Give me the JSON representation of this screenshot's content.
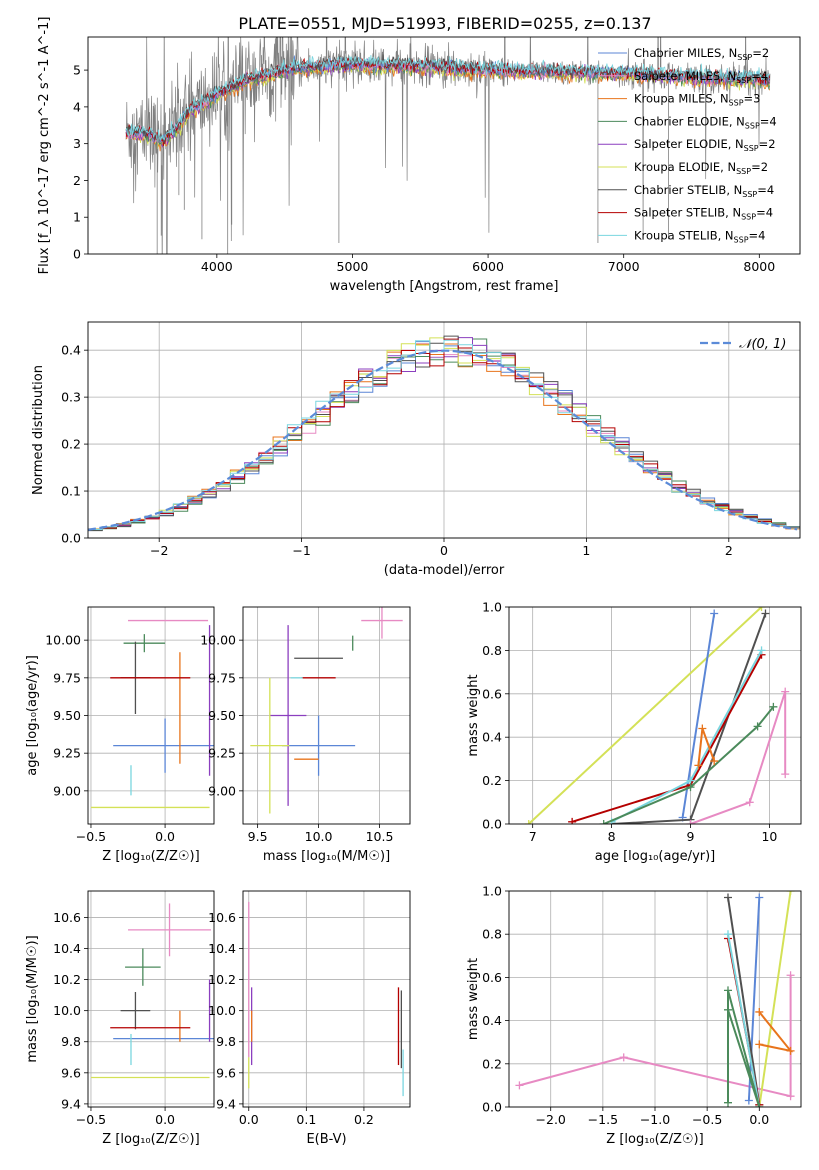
{
  "title": "PLATE=0551, MJD=51993, FIBERID=0255, z=0.137",
  "colors": {
    "chabrier_miles": "#5b86d6",
    "salpeter_miles": "#e78ac3",
    "kroupa_miles": "#e8741c",
    "chabrier_elodie": "#4b8a5b",
    "salpeter_elodie": "#8b3fbf",
    "kroupa_elodie": "#d4e157",
    "chabrier_stelib": "#505050",
    "salpeter_stelib": "#b40000",
    "kroupa_stelib": "#7ad6df",
    "data": "#808080",
    "normal": "#5b8bd8"
  },
  "chart_data": [
    {
      "id": "spectrum",
      "type": "line",
      "xlabel": "wavelength [Angstrom, rest frame]",
      "ylabel": "Flux [f_λ 10^-17 erg cm^-2 s^-1 A^-1]",
      "xlim": [
        3050,
        8300
      ],
      "ylim": [
        0,
        5.9
      ],
      "xticks": [
        4000,
        5000,
        6000,
        7000,
        8000
      ],
      "yticks": [
        0,
        1,
        2,
        3,
        4,
        5
      ],
      "legend": [
        {
          "key": "chabrier_miles",
          "label": "Chabrier MILES, N",
          "sub": "SSP",
          "suffix": "=2"
        },
        {
          "key": "salpeter_miles",
          "label": "Salpeter MILES, N",
          "sub": "SSP",
          "suffix": "=4"
        },
        {
          "key": "kroupa_miles",
          "label": "Kroupa MILES, N",
          "sub": "SSP",
          "suffix": "=3"
        },
        {
          "key": "chabrier_elodie",
          "label": "Chabrier ELODIE, N",
          "sub": "SSP",
          "suffix": "=4"
        },
        {
          "key": "salpeter_elodie",
          "label": "Salpeter ELODIE, N",
          "sub": "SSP",
          "suffix": "=2"
        },
        {
          "key": "kroupa_elodie",
          "label": "Kroupa ELODIE, N",
          "sub": "SSP",
          "suffix": "=2"
        },
        {
          "key": "chabrier_stelib",
          "label": "Chabrier STELIB, N",
          "sub": "SSP",
          "suffix": "=4"
        },
        {
          "key": "salpeter_stelib",
          "label": "Salpeter STELIB, N",
          "sub": "SSP",
          "suffix": "=4"
        },
        {
          "key": "kroupa_stelib",
          "label": "Kroupa STELIB, N",
          "sub": "SSP",
          "suffix": "=4"
        }
      ],
      "continuum": [
        [
          3330,
          3.3
        ],
        [
          3500,
          3.25
        ],
        [
          3600,
          3.05
        ],
        [
          3700,
          3.4
        ],
        [
          3800,
          3.9
        ],
        [
          3900,
          4.1
        ],
        [
          4000,
          4.35
        ],
        [
          4200,
          4.7
        ],
        [
          4400,
          4.9
        ],
        [
          4600,
          5.05
        ],
        [
          5000,
          5.15
        ],
        [
          5500,
          5.1
        ],
        [
          6000,
          5.0
        ],
        [
          6500,
          4.95
        ],
        [
          7000,
          4.9
        ],
        [
          7500,
          4.8
        ],
        [
          8000,
          4.75
        ],
        [
          8080,
          4.7
        ]
      ]
    },
    {
      "id": "residuals",
      "type": "histogram",
      "xlabel": "(data-model)/error",
      "ylabel": "Normed distribution",
      "xlim": [
        -2.5,
        2.5
      ],
      "ylim": [
        0,
        0.46
      ],
      "xticks": [
        -2,
        -1,
        0,
        1,
        2
      ],
      "yticks": [
        0.0,
        0.1,
        0.2,
        0.3,
        0.4
      ],
      "legend_label": "𝒩(0, 1)",
      "bin_width": 0.1,
      "normal": {
        "mu": 0,
        "sigma": 1
      }
    },
    {
      "id": "age_vs_Z",
      "type": "scatter",
      "xlabel": "Z [log₁₀(Z/Z☉)]",
      "ylabel": "age  [log₁₀(age/yr)]",
      "xlim": [
        -0.52,
        0.33
      ],
      "ylim": [
        8.78,
        10.22
      ],
      "xticks": [
        -0.5,
        0.0
      ],
      "yticks": [
        9.0,
        9.25,
        9.5,
        9.75,
        10.0
      ],
      "points": [
        {
          "key": "chabrier_miles",
          "x": 0.0,
          "xerr": 0.35,
          "y": 9.3,
          "yerr": 0.18
        },
        {
          "key": "salpeter_miles",
          "x": 0.02,
          "xerr": 0.27,
          "y": 10.13,
          "yerr": 0.0
        },
        {
          "key": "kroupa_miles",
          "x": 0.1,
          "xerr": 0.0,
          "y": 9.55,
          "yerr": 0.37
        },
        {
          "key": "chabrier_elodie",
          "x": -0.14,
          "xerr": 0.14,
          "y": 9.98,
          "yerr": 0.06
        },
        {
          "key": "salpeter_elodie",
          "x": 0.3,
          "xerr": 0.0,
          "y": 9.6,
          "yerr": 0.5
        },
        {
          "key": "kroupa_elodie",
          "x": -0.1,
          "xerr": 0.4,
          "y": 8.89,
          "yerr": 0.0
        },
        {
          "key": "chabrier_stelib",
          "x": -0.2,
          "xerr": 0.1,
          "y": 9.75,
          "yerr": 0.24
        },
        {
          "key": "salpeter_stelib",
          "x": -0.1,
          "xerr": 0.27,
          "y": 9.75,
          "yerr": 0.0
        },
        {
          "key": "kroupa_stelib",
          "x": -0.23,
          "xerr": 0.0,
          "y": 9.07,
          "yerr": 0.1
        }
      ]
    },
    {
      "id": "age_vs_mass",
      "type": "scatter",
      "xlabel": "mass [log₁₀(M/M☉)]",
      "ylabel": "",
      "xlim": [
        9.38,
        10.75
      ],
      "ylim": [
        8.78,
        10.22
      ],
      "xticks": [
        9.5,
        10.0,
        10.5
      ],
      "yticks": [
        9.0,
        9.25,
        9.5,
        9.75,
        10.0
      ],
      "points": [
        {
          "key": "chabrier_miles",
          "x": 10.0,
          "xerr": 0.3,
          "y": 9.3,
          "yerr": 0.2
        },
        {
          "key": "salpeter_miles",
          "x": 10.52,
          "xerr": 0.17,
          "y": 10.13,
          "yerr": 0.12
        },
        {
          "key": "kroupa_miles",
          "x": 9.9,
          "xerr": 0.1,
          "y": 9.21,
          "yerr": 0.0
        },
        {
          "key": "chabrier_elodie",
          "x": 10.28,
          "xerr": 0.0,
          "y": 9.98,
          "yerr": 0.05
        },
        {
          "key": "salpeter_elodie",
          "x": 9.75,
          "xerr": 0.15,
          "y": 9.5,
          "yerr": 0.6
        },
        {
          "key": "kroupa_elodie",
          "x": 9.6,
          "xerr": 0.16,
          "y": 9.3,
          "yerr": 0.45
        },
        {
          "key": "chabrier_stelib",
          "x": 10.0,
          "xerr": 0.2,
          "y": 9.88,
          "yerr": 0.0
        },
        {
          "key": "salpeter_stelib",
          "x": 10.0,
          "xerr": 0.14,
          "y": 9.75,
          "yerr": 0.0
        },
        {
          "key": "kroupa_stelib",
          "x": 9.82,
          "xerr": 0.05,
          "y": 9.75,
          "yerr": 0.0
        }
      ]
    },
    {
      "id": "mass_weight_vs_age",
      "type": "line",
      "xlabel": "age  [log₁₀(age/yr)]",
      "ylabel": "mass weight",
      "xlim": [
        6.7,
        10.4
      ],
      "ylim": [
        0,
        1.0
      ],
      "xticks": [
        7,
        8,
        9,
        10
      ],
      "yticks": [
        0.0,
        0.2,
        0.4,
        0.6,
        0.8,
        1.0
      ],
      "series": [
        {
          "key": "kroupa_elodie",
          "x": [
            6.95,
            9.9
          ],
          "y": [
            0.0,
            1.0
          ]
        },
        {
          "key": "chabrier_miles",
          "x": [
            8.9,
            9.3
          ],
          "y": [
            0.03,
            0.97
          ]
        },
        {
          "key": "chabrier_stelib",
          "x": [
            8.0,
            9.0,
            9.95
          ],
          "y": [
            0.0,
            0.02,
            0.97
          ]
        },
        {
          "key": "salpeter_stelib",
          "x": [
            7.5,
            9.0,
            9.9
          ],
          "y": [
            0.01,
            0.18,
            0.78
          ]
        },
        {
          "key": "kroupa_stelib",
          "x": [
            8.0,
            9.0,
            9.9
          ],
          "y": [
            0.01,
            0.2,
            0.8
          ]
        },
        {
          "key": "chabrier_elodie",
          "x": [
            7.9,
            9.0,
            9.85,
            10.05
          ],
          "y": [
            0.0,
            0.17,
            0.45,
            0.54
          ]
        },
        {
          "key": "salpeter_miles",
          "x": [
            9.0,
            9.75,
            10.2,
            10.2
          ],
          "y": [
            0.0,
            0.1,
            0.61,
            0.23
          ]
        },
        {
          "key": "kroupa_miles",
          "x": [
            9.1,
            9.15,
            9.3
          ],
          "y": [
            0.27,
            0.44,
            0.29
          ]
        }
      ]
    },
    {
      "id": "mass_vs_Z",
      "type": "scatter",
      "xlabel": "Z [log₁₀(Z/Z☉)]",
      "ylabel": "mass [log₁₀(M/M☉)]",
      "xlim": [
        -0.52,
        0.33
      ],
      "ylim": [
        9.38,
        10.77
      ],
      "xticks": [
        -0.5,
        0.0
      ],
      "yticks": [
        9.4,
        9.6,
        9.8,
        10.0,
        10.2,
        10.4,
        10.6
      ],
      "points": [
        {
          "key": "chabrier_miles",
          "x": 0.0,
          "xerr": 0.35,
          "y": 9.82,
          "yerr": 0.0
        },
        {
          "key": "salpeter_miles",
          "x": 0.03,
          "xerr": 0.28,
          "y": 10.52,
          "yerr": 0.17
        },
        {
          "key": "kroupa_miles",
          "x": 0.1,
          "xerr": 0.0,
          "y": 9.9,
          "yerr": 0.1
        },
        {
          "key": "chabrier_elodie",
          "x": -0.15,
          "xerr": 0.12,
          "y": 10.28,
          "yerr": 0.12
        },
        {
          "key": "salpeter_elodie",
          "x": 0.3,
          "xerr": 0.0,
          "y": 10.0,
          "yerr": 0.2
        },
        {
          "key": "kroupa_elodie",
          "x": -0.1,
          "xerr": 0.4,
          "y": 9.57,
          "yerr": 0.0
        },
        {
          "key": "chabrier_stelib",
          "x": -0.2,
          "xerr": 0.1,
          "y": 10.0,
          "yerr": 0.12
        },
        {
          "key": "salpeter_stelib",
          "x": -0.1,
          "xerr": 0.27,
          "y": 9.89,
          "yerr": 0.0
        },
        {
          "key": "kroupa_stelib",
          "x": -0.23,
          "xerr": 0.0,
          "y": 9.75,
          "yerr": 0.1
        }
      ]
    },
    {
      "id": "mass_vs_ebv",
      "type": "scatter",
      "xlabel": "E(B-V)",
      "ylabel": "",
      "xlim": [
        -0.01,
        0.28
      ],
      "ylim": [
        9.38,
        10.77
      ],
      "xticks": [
        0.0,
        0.1,
        0.2
      ],
      "yticks": [
        9.4,
        9.6,
        9.8,
        10.0,
        10.2,
        10.4,
        10.6
      ],
      "points": [
        {
          "key": "salpeter_miles",
          "x": 0.0,
          "xerr": 0.0,
          "y": 10.2,
          "yerr": 0.5
        },
        {
          "key": "salpeter_elodie",
          "x": 0.005,
          "xerr": 0.0,
          "y": 9.9,
          "yerr": 0.25
        },
        {
          "key": "kroupa_miles",
          "x": 0.005,
          "xerr": 0.0,
          "y": 9.9,
          "yerr": 0.1
        },
        {
          "key": "kroupa_elodie",
          "x": 0.0,
          "xerr": 0.0,
          "y": 9.6,
          "yerr": 0.1
        },
        {
          "key": "salpeter_stelib",
          "x": 0.26,
          "xerr": 0.0,
          "y": 9.9,
          "yerr": 0.25
        },
        {
          "key": "chabrier_stelib",
          "x": 0.265,
          "xerr": 0.0,
          "y": 9.88,
          "yerr": 0.25
        },
        {
          "key": "kroupa_stelib",
          "x": 0.268,
          "xerr": 0.0,
          "y": 9.6,
          "yerr": 0.15
        }
      ]
    },
    {
      "id": "mass_weight_vs_Z",
      "type": "line",
      "xlabel": "Z [log₁₀(Z/Z☉)]",
      "ylabel": "mass weight",
      "xlim": [
        -2.4,
        0.4
      ],
      "ylim": [
        0,
        1.0
      ],
      "xticks": [
        -2.0,
        -1.5,
        -1.0,
        -0.5,
        0.0
      ],
      "yticks": [
        0.0,
        0.2,
        0.4,
        0.6,
        0.8,
        1.0
      ],
      "series": [
        {
          "key": "salpeter_miles",
          "x": [
            -2.3,
            -1.3,
            0.3,
            0.3
          ],
          "y": [
            0.1,
            0.23,
            0.05,
            0.61
          ]
        },
        {
          "key": "kroupa_elodie",
          "x": [
            0.0,
            0.3
          ],
          "y": [
            0.0,
            1.0
          ]
        },
        {
          "key": "chabrier_miles",
          "x": [
            -0.1,
            0.0
          ],
          "y": [
            0.03,
            0.97
          ]
        },
        {
          "key": "chabrier_stelib",
          "x": [
            -0.3,
            0.0
          ],
          "y": [
            0.97,
            0.01
          ]
        },
        {
          "key": "salpeter_stelib",
          "x": [
            -0.3,
            0.0
          ],
          "y": [
            0.78,
            0.01
          ]
        },
        {
          "key": "kroupa_stelib",
          "x": [
            -0.3,
            0.0
          ],
          "y": [
            0.8,
            0.0
          ]
        },
        {
          "key": "chabrier_elodie",
          "x": [
            -0.3,
            -0.3,
            0.0,
            -0.3
          ],
          "y": [
            0.02,
            0.54,
            0.0,
            0.45
          ]
        },
        {
          "key": "kroupa_miles",
          "x": [
            0.0,
            0.3,
            0.0
          ],
          "y": [
            0.29,
            0.26,
            0.44
          ]
        }
      ]
    }
  ]
}
